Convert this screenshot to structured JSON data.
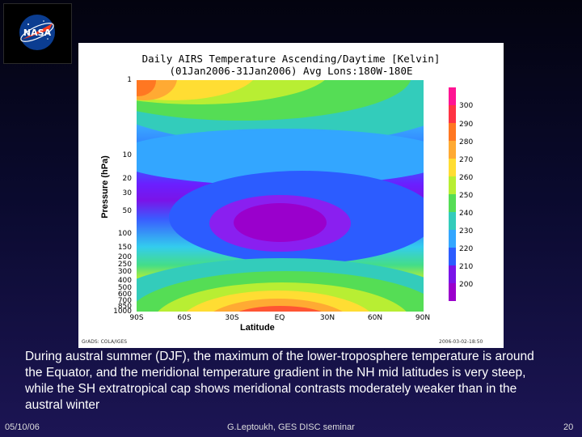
{
  "logo": {
    "text": "NASA"
  },
  "figure": {
    "title_line1": "Daily AIRS Temperature Ascending/Daytime [Kelvin]",
    "title_line2": "(01Jan2006-31Jan2006)  Avg Lons:180W-180E",
    "ylabel": "Pressure (hPa)",
    "xlabel": "Latitude",
    "y_ticks": [
      "1",
      "10",
      "20",
      "30",
      "50",
      "100",
      "150",
      "200",
      "250",
      "300",
      "400",
      "500",
      "600",
      "700",
      "850",
      "1000"
    ],
    "x_ticks": [
      "90S",
      "60S",
      "30S",
      "EQ",
      "30N",
      "60N",
      "90N"
    ],
    "colorbar_labels": [
      "300",
      "290",
      "280",
      "270",
      "260",
      "250",
      "240",
      "230",
      "220",
      "210",
      "200"
    ],
    "credit_left": "GrADS: COLA/IGES",
    "credit_right": "2006-03-02-18:50"
  },
  "caption": "During austral summer (DJF), the maximum of the lower-troposphere temperature is around the Equator, and the meridional temperature gradient in the NH mid latitudes is very steep, while the SH extratropical cap shows meridional contrasts moderately weaker than in the austral winter",
  "footer": {
    "date": "05/10/06",
    "center": "G.Leptoukh, GES DISC seminar",
    "page": "20"
  },
  "colors": {
    "colorbar": [
      "#ff1493",
      "#ff3344",
      "#ff7722",
      "#ffaa33",
      "#ffdd33",
      "#b8ee33",
      "#55dd55",
      "#33ccbb",
      "#33a6ff",
      "#2c5cff",
      "#7a14e8",
      "#9a00cc"
    ]
  }
}
